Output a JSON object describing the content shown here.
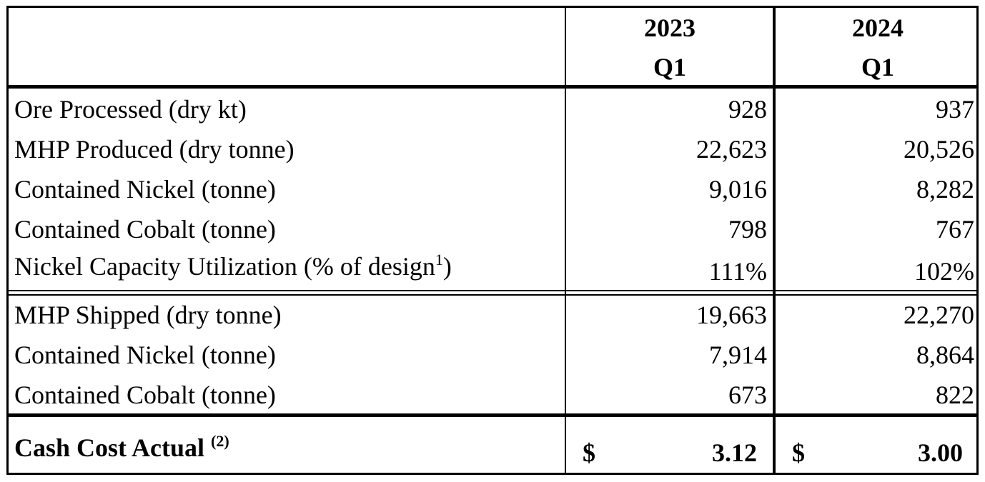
{
  "columns": [
    {
      "year": "2023",
      "quarter": "Q1"
    },
    {
      "year": "2024",
      "quarter": "Q1"
    }
  ],
  "production_rows": [
    {
      "label": "Ore Processed (dry kt)",
      "values": [
        "928",
        "937"
      ]
    },
    {
      "label": "MHP Produced (dry tonne)",
      "values": [
        "22,623",
        "20,526"
      ]
    },
    {
      "label": "Contained Nickel (tonne)",
      "values": [
        "9,016",
        "8,282"
      ]
    },
    {
      "label": "Contained Cobalt (tonne)",
      "values": [
        "798",
        "767"
      ]
    },
    {
      "label": "Nickel Capacity Utilization (% of design",
      "superscript": "1",
      "label_suffix": ")",
      "values": [
        "111%",
        "102%"
      ]
    }
  ],
  "shipping_rows": [
    {
      "label": "MHP Shipped (dry tonne)",
      "values": [
        "19,663",
        "22,270"
      ]
    },
    {
      "label": "Contained Nickel (tonne)",
      "values": [
        "7,914",
        "8,864"
      ]
    },
    {
      "label": "Contained Cobalt (tonne)",
      "values": [
        "673",
        "822"
      ]
    }
  ],
  "cash_cost": {
    "label": "Cash Cost Actual",
    "superscript": "(2)",
    "currency_symbol": "$",
    "values": [
      "3.12",
      "3.00"
    ]
  }
}
